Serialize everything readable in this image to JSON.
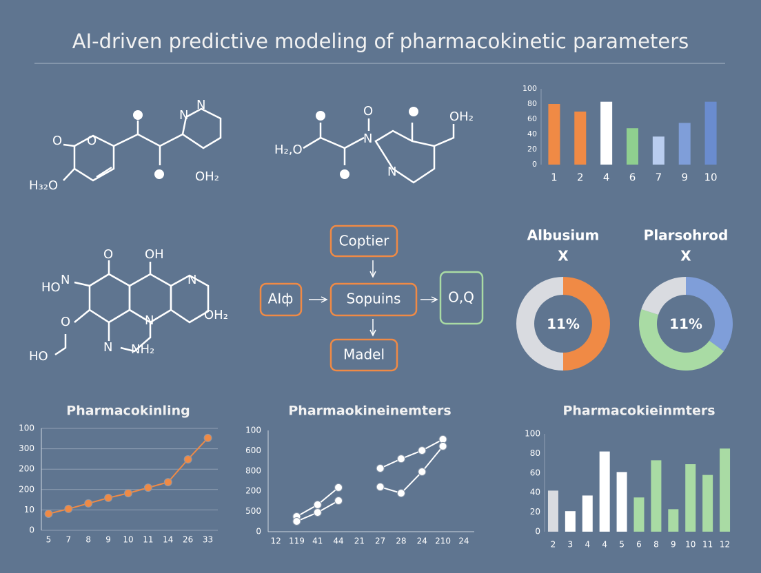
{
  "title": "AI-driven predictive modeling of pharmacokinetic parameters",
  "molecules": [
    {
      "atoms": [
        "O",
        "O",
        "H₃₂O",
        "N",
        "N",
        "OH₂"
      ]
    },
    {
      "atoms": [
        "O",
        "N",
        "OH₂",
        "H₂,O",
        "N"
      ]
    },
    {
      "atoms": [
        "O",
        "OH",
        "HO",
        "N",
        "N",
        "O",
        "OH₂",
        "N",
        "NH₂",
        "HO",
        "N"
      ]
    }
  ],
  "flowchart": {
    "nodes": [
      "Coptier",
      "Sopuins",
      "Madel",
      "AIф",
      "O,Q"
    ]
  },
  "chart_data": [
    {
      "type": "bar",
      "categories": [
        "1",
        "2",
        "4",
        "6",
        "7",
        "9",
        "10"
      ],
      "values": [
        80,
        70,
        83,
        48,
        37,
        55,
        83
      ],
      "colors": [
        "#f08a45",
        "#f08a45",
        "#ffffff",
        "#8fcf8f",
        "#b9cdef",
        "#7f9ed9",
        "#6a8ccf"
      ],
      "ylim": [
        0,
        100
      ],
      "yticks": [
        0,
        20,
        40,
        60,
        80,
        100
      ]
    },
    {
      "type": "pie",
      "title": "Albusium",
      "subtitle": "X",
      "center_label": "11%",
      "values": [
        50,
        50
      ],
      "colors": [
        "#f08a45",
        "#d9dbe0"
      ]
    },
    {
      "type": "pie",
      "title": "Plarsohrod",
      "subtitle": "X",
      "center_label": "11%",
      "values": [
        35,
        45,
        20
      ],
      "colors": [
        "#7f9ed9",
        "#a9dba4",
        "#d9dbe0"
      ]
    },
    {
      "type": "line",
      "title": "Pharmacokinling",
      "categories": [
        "5",
        "7",
        "8",
        "9",
        "10",
        "11",
        "14",
        "26",
        "33"
      ],
      "series": [
        {
          "color": "#f08a45",
          "values": [
            0.81,
            1.05,
            1.32,
            1.59,
            1.82,
            2.09,
            2.36,
            3.48,
            4.53
          ]
        }
      ],
      "ylim": [
        0,
        5
      ],
      "yticks": [
        0,
        {
          "value": 1,
          "label": "10"
        },
        {
          "value": 2,
          "label": "200"
        },
        {
          "value": 3,
          "label": "200"
        },
        {
          "value": 4,
          "label": "300"
        },
        {
          "value": 5,
          "label": "100"
        }
      ],
      "grid": true
    },
    {
      "type": "line",
      "title": "Pharmaokineinemters",
      "categories": [
        "12",
        "119",
        "41",
        "44",
        "21",
        "27",
        "28",
        "24",
        "210",
        "24"
      ],
      "series": [
        {
          "color": "#ffffff",
          "values": [
            null,
            0.75,
            1.33,
            2.18,
            null,
            3.13,
            3.6,
            4.01,
            4.56,
            null
          ]
        },
        {
          "color": "#ffffff",
          "values": [
            null,
            0.51,
            0.95,
            1.53,
            null,
            2.21,
            1.9,
            2.96,
            4.22,
            null
          ]
        }
      ],
      "ylim": [
        0,
        5
      ],
      "yticks": [
        0,
        {
          "value": 1,
          "label": "500"
        },
        {
          "value": 2,
          "label": "200"
        },
        {
          "value": 3,
          "label": "800"
        },
        {
          "value": 4,
          "label": "600"
        },
        {
          "value": 5,
          "label": "100"
        }
      ],
      "grid": false
    },
    {
      "type": "bar",
      "title": "Pharmacokieinmters",
      "categories": [
        "2",
        "3",
        "4",
        "4",
        "5",
        "6",
        "8",
        "9",
        "10",
        "11",
        "12"
      ],
      "values": [
        42,
        21,
        37,
        82,
        61,
        35,
        73,
        23,
        69,
        58,
        85
      ],
      "colors": [
        "#d9dbe0",
        "#ffffff",
        "#ffffff",
        "#ffffff",
        "#ffffff",
        "#a9dba4",
        "#a9dba4",
        "#a9dba4",
        "#a9dba4",
        "#a9dba4",
        "#a9dba4"
      ],
      "ylim": [
        0,
        100
      ],
      "yticks": [
        0,
        20,
        40,
        60,
        80,
        100
      ]
    }
  ]
}
